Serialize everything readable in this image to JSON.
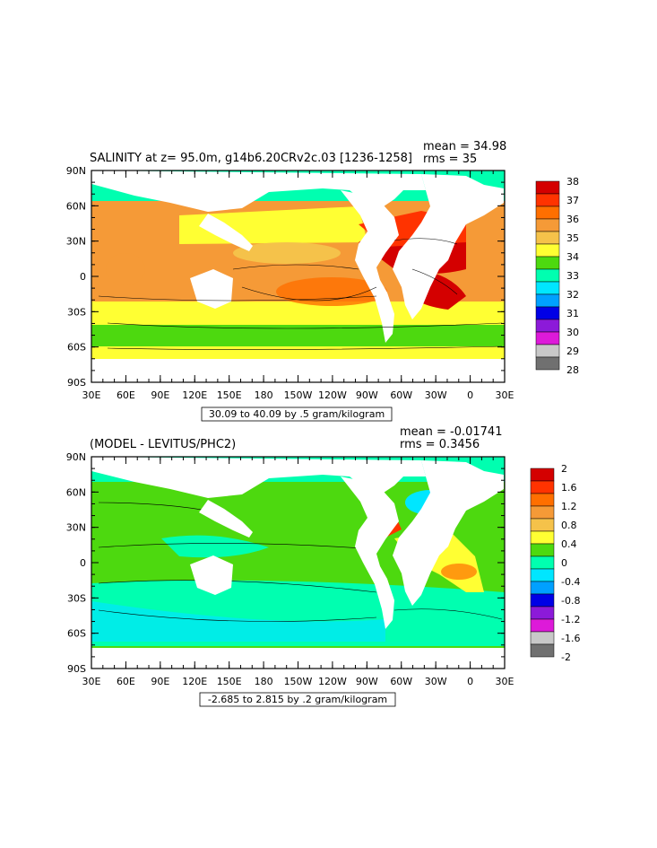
{
  "panels": [
    {
      "title": "SALINITY at z=  95.0m, g14b6.20CRv2c.03 [1236-1258]",
      "stats_mean": "mean = 34.98",
      "stats_rms": "rms = 35",
      "range_label": "30.09 to 40.09 by .5 gram/kilogram",
      "lat_labels": [
        "90N",
        "60N",
        "30N",
        "0",
        "30S",
        "60S",
        "90S"
      ],
      "lon_labels": [
        "30E",
        "60E",
        "90E",
        "120E",
        "150E",
        "180",
        "150W",
        "120W",
        "90W",
        "60W",
        "30W",
        "0",
        "30E"
      ],
      "colorbar": {
        "labels": [
          "38",
          "37",
          "36",
          "35",
          "34",
          "33",
          "32",
          "31",
          "30",
          "29",
          "28"
        ],
        "colors": [
          "#d40000",
          "#ff3300",
          "#ff6f00",
          "#f59a37",
          "#f5c24a",
          "#ffff33",
          "#4dd90f",
          "#00ffb0",
          "#00e6ff",
          "#00a0ff",
          "#0000e6",
          "#8c1ad9",
          "#dd1ad9",
          "#c8c8c8",
          "#707070"
        ]
      }
    },
    {
      "title": "(MODEL - LEVITUS/PHC2)",
      "stats_mean": "mean = -0.01741",
      "stats_rms": "rms = 0.3456",
      "range_label": "-2.685 to 2.815 by .2 gram/kilogram",
      "lat_labels": [
        "90N",
        "60N",
        "30N",
        "0",
        "30S",
        "60S",
        "90S"
      ],
      "lon_labels": [
        "30E",
        "60E",
        "90E",
        "120E",
        "150E",
        "180",
        "150W",
        "120W",
        "90W",
        "60W",
        "30W",
        "0",
        "30E"
      ],
      "colorbar": {
        "labels": [
          "2",
          "1.6",
          "1.2",
          "0.8",
          "0.4",
          "0",
          "-0.4",
          "-0.8",
          "-1.2",
          "-1.6",
          "-2"
        ],
        "colors": [
          "#d40000",
          "#ff3300",
          "#ff6f00",
          "#f59a37",
          "#f5c24a",
          "#ffff33",
          "#4dd90f",
          "#00ffb0",
          "#00e6ff",
          "#00a0ff",
          "#0000e6",
          "#8c1ad9",
          "#dd1ad9",
          "#c8c8c8",
          "#707070"
        ]
      }
    }
  ]
}
